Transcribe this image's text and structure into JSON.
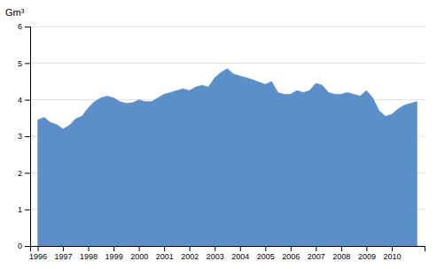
{
  "chart_data": {
    "type": "area",
    "y_label": "Gm³",
    "color": "#5b8fc9",
    "grid": true,
    "x": [
      1996.0,
      1996.25,
      1996.5,
      1996.75,
      1997.0,
      1997.25,
      1997.5,
      1997.75,
      1998.0,
      1998.25,
      1998.5,
      1998.75,
      1999.0,
      1999.25,
      1999.5,
      1999.75,
      2000.0,
      2000.25,
      2000.5,
      2000.75,
      2001.0,
      2001.25,
      2001.5,
      2001.75,
      2002.0,
      2002.25,
      2002.5,
      2002.75,
      2003.0,
      2003.25,
      2003.5,
      2003.75,
      2004.0,
      2004.25,
      2004.5,
      2004.75,
      2005.0,
      2005.25,
      2005.5,
      2005.75,
      2006.0,
      2006.25,
      2006.5,
      2006.75,
      2007.0,
      2007.25,
      2007.5,
      2007.75,
      2008.0,
      2008.25,
      2008.5,
      2008.75,
      2009.0,
      2009.25,
      2009.5,
      2009.75,
      2010.0,
      2010.25,
      2010.5,
      2010.75,
      2011.0
    ],
    "values": [
      3.45,
      3.52,
      3.38,
      3.32,
      3.2,
      3.3,
      3.48,
      3.55,
      3.78,
      3.95,
      4.05,
      4.1,
      4.05,
      3.95,
      3.9,
      3.92,
      4.0,
      3.95,
      3.95,
      4.05,
      4.15,
      4.2,
      4.25,
      4.3,
      4.25,
      4.35,
      4.4,
      4.35,
      4.6,
      4.75,
      4.85,
      4.7,
      4.65,
      4.6,
      4.55,
      4.48,
      4.42,
      4.5,
      4.2,
      4.15,
      4.15,
      4.25,
      4.2,
      4.25,
      4.45,
      4.4,
      4.2,
      4.15,
      4.15,
      4.2,
      4.15,
      4.1,
      4.25,
      4.05,
      3.7,
      3.55,
      3.6,
      3.75,
      3.85,
      3.9,
      3.95
    ],
    "xlim": [
      1995.7,
      2011.3
    ],
    "xticks": [
      1996,
      1997,
      1998,
      1999,
      2000,
      2001,
      2002,
      2003,
      2004,
      2005,
      2006,
      2007,
      2008,
      2009,
      2010
    ],
    "ylim": [
      0,
      6
    ],
    "yticks": [
      0,
      1,
      2,
      3,
      4,
      5,
      6
    ]
  }
}
